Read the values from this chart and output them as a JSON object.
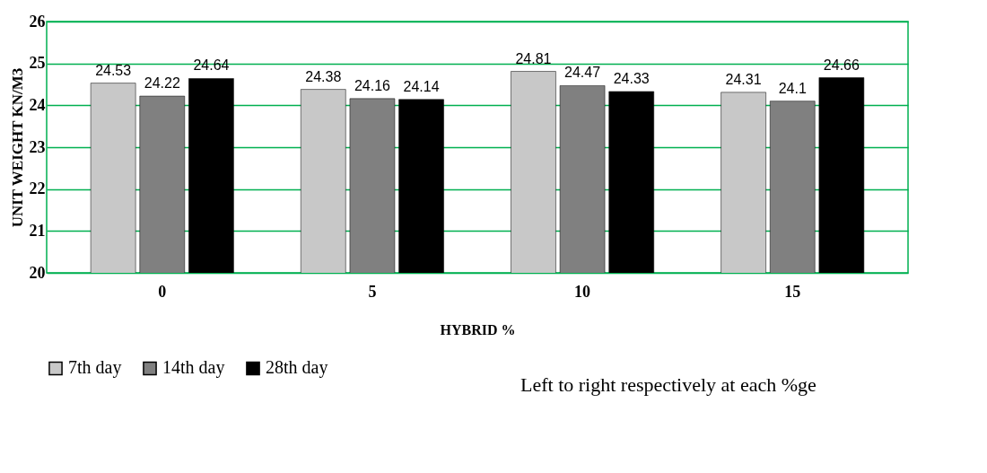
{
  "chart_data": {
    "type": "bar",
    "xlabel": "HYBRID %",
    "ylabel": "UNIT WEIGHT KN/M3",
    "categories": [
      "0",
      "5",
      "10",
      "15"
    ],
    "series": [
      {
        "name": "7th day",
        "color": "#c8c8c8",
        "values": [
          24.53,
          24.38,
          24.81,
          24.31
        ]
      },
      {
        "name": "14th day",
        "color": "#808080",
        "values": [
          24.22,
          24.16,
          24.47,
          24.1
        ]
      },
      {
        "name": "28th day",
        "color": "#000000",
        "values": [
          24.64,
          24.14,
          24.33,
          24.66
        ]
      }
    ],
    "ylim": [
      20,
      26
    ],
    "yticks": [
      20,
      21,
      22,
      23,
      24,
      25,
      26
    ],
    "grid": "y",
    "legend": "bottom",
    "data_labels": true,
    "annotations": [
      "Left to right respectively at each %ge"
    ]
  }
}
